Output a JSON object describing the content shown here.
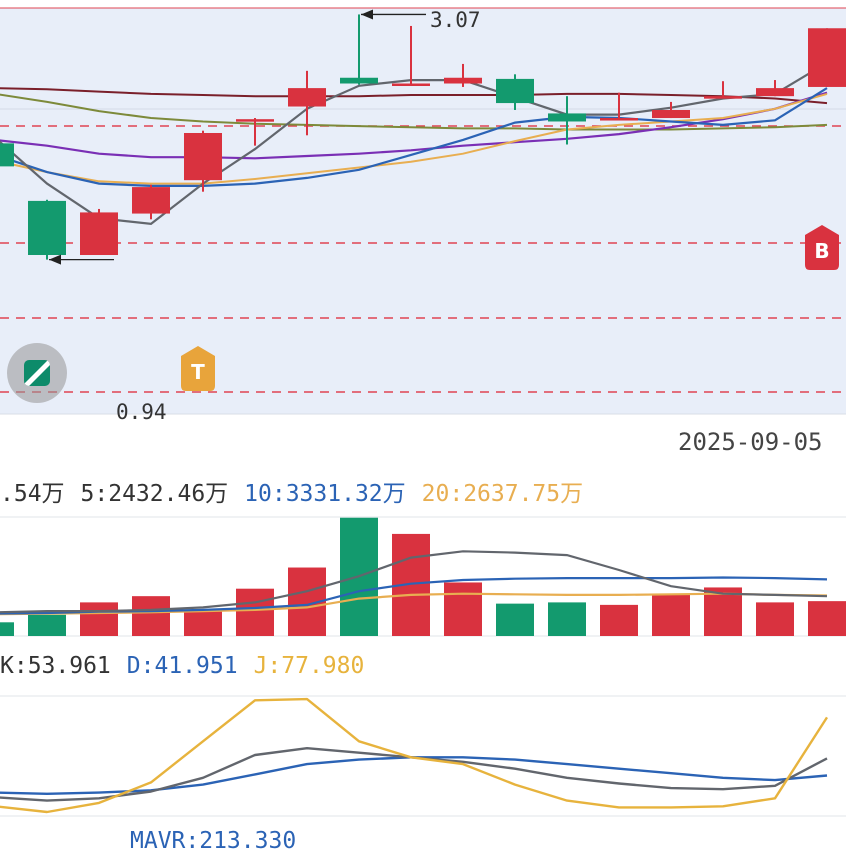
{
  "colors": {
    "up": "#d9323f",
    "down": "#139a6e",
    "ma5": "#62666d",
    "ma10": "#2b63b5",
    "ma20": "#e8ae51",
    "ma_purple": "#7a2fb5",
    "ma_olive": "#7d8a3a",
    "ma_maroon": "#7a1f2a",
    "kdj_j": "#e7b33d",
    "panel_bg": "#e8eef9",
    "dash": "#e04452",
    "text": "#333333",
    "marker_t": "#e8a43b",
    "marker_b": "#d9323f"
  },
  "price_chart": {
    "high_label": "3.07",
    "low_label": "0.94",
    "date_label": "2025-09-05",
    "candles": [
      {
        "open": 1.95,
        "close": 1.75,
        "high": 1.97,
        "low": 1.72,
        "dir": "down"
      },
      {
        "open": 1.45,
        "close": 0.98,
        "high": 1.46,
        "low": 0.94,
        "dir": "down"
      },
      {
        "open": 0.98,
        "close": 1.35,
        "high": 1.38,
        "low": 0.98,
        "dir": "up"
      },
      {
        "open": 1.34,
        "close": 1.57,
        "high": 1.59,
        "low": 1.29,
        "dir": "up"
      },
      {
        "open": 1.63,
        "close": 2.04,
        "high": 2.06,
        "low": 1.53,
        "dir": "up"
      },
      {
        "open": 2.15,
        "close": 2.16,
        "high": 2.17,
        "low": 1.93,
        "dir": "up"
      },
      {
        "open": 2.27,
        "close": 2.43,
        "high": 2.58,
        "low": 2.02,
        "dir": "up"
      },
      {
        "open": 2.47,
        "close": 2.52,
        "high": 3.07,
        "low": 2.46,
        "dir": "down"
      },
      {
        "open": 2.47,
        "close": 2.47,
        "high": 2.97,
        "low": 2.47,
        "dir": "up"
      },
      {
        "open": 2.47,
        "close": 2.52,
        "high": 2.64,
        "low": 2.44,
        "dir": "up"
      },
      {
        "open": 2.51,
        "close": 2.3,
        "high": 2.55,
        "low": 2.24,
        "dir": "down"
      },
      {
        "open": 2.21,
        "close": 2.14,
        "high": 2.36,
        "low": 1.94,
        "dir": "down"
      },
      {
        "open": 2.15,
        "close": 2.17,
        "high": 2.39,
        "low": 2.15,
        "dir": "up"
      },
      {
        "open": 2.17,
        "close": 2.24,
        "high": 2.31,
        "low": 2.17,
        "dir": "up"
      },
      {
        "open": 2.35,
        "close": 2.36,
        "high": 2.49,
        "low": 2.34,
        "dir": "up"
      },
      {
        "open": 2.36,
        "close": 2.43,
        "high": 2.5,
        "low": 2.36,
        "dir": "up"
      },
      {
        "open": 2.44,
        "close": 2.95,
        "high": 2.95,
        "low": 2.44,
        "dir": "up"
      }
    ],
    "ma_lines": {
      "ma5": [
        2.0,
        1.6,
        1.3,
        1.25,
        1.6,
        1.9,
        2.25,
        2.45,
        2.5,
        2.5,
        2.35,
        2.2,
        2.2,
        2.26,
        2.34,
        2.38,
        2.65
      ],
      "ma10": [
        1.85,
        1.7,
        1.6,
        1.58,
        1.58,
        1.6,
        1.65,
        1.72,
        1.85,
        1.98,
        2.13,
        2.18,
        2.17,
        2.14,
        2.11,
        2.15,
        2.43
      ],
      "ma20": [
        1.8,
        1.7,
        1.62,
        1.6,
        1.6,
        1.64,
        1.69,
        1.74,
        1.79,
        1.86,
        1.97,
        2.07,
        2.11,
        2.14,
        2.17,
        2.25,
        2.38
      ],
      "ma_purple": [
        1.98,
        1.93,
        1.86,
        1.83,
        1.83,
        1.82,
        1.84,
        1.86,
        1.89,
        1.93,
        1.96,
        1.99,
        2.03,
        2.09,
        2.16,
        2.25,
        2.39
      ],
      "ma_olive": [
        2.38,
        2.31,
        2.23,
        2.17,
        2.14,
        2.12,
        2.11,
        2.1,
        2.09,
        2.08,
        2.08,
        2.07,
        2.07,
        2.07,
        2.08,
        2.09,
        2.11
      ],
      "ma_maroon": [
        2.43,
        2.42,
        2.4,
        2.38,
        2.37,
        2.36,
        2.36,
        2.36,
        2.37,
        2.37,
        2.37,
        2.38,
        2.38,
        2.37,
        2.36,
        2.34,
        2.3
      ]
    },
    "markers": {
      "t_label": "T",
      "b_label": "B"
    }
  },
  "volume_legend": [
    {
      "text": ".54万",
      "color_key": "text"
    },
    {
      "text": "5:2432.46万",
      "color_key": "text"
    },
    {
      "text": "10:3331.32万",
      "color_key": "ma10"
    },
    {
      "text": "20:2637.75万",
      "color_key": "ma20"
    }
  ],
  "volume_chart": {
    "bars": [
      {
        "v": 1100,
        "dir": "down"
      },
      {
        "v": 1700,
        "dir": "down"
      },
      {
        "v": 2700,
        "dir": "up"
      },
      {
        "v": 3200,
        "dir": "up"
      },
      {
        "v": 2100,
        "dir": "up"
      },
      {
        "v": 3800,
        "dir": "up"
      },
      {
        "v": 5500,
        "dir": "up"
      },
      {
        "v": 9500,
        "dir": "down"
      },
      {
        "v": 8200,
        "dir": "up"
      },
      {
        "v": 4300,
        "dir": "up"
      },
      {
        "v": 2600,
        "dir": "down"
      },
      {
        "v": 2700,
        "dir": "down"
      },
      {
        "v": 2500,
        "dir": "up"
      },
      {
        "v": 3400,
        "dir": "up"
      },
      {
        "v": 3900,
        "dir": "up"
      },
      {
        "v": 2700,
        "dir": "up"
      },
      {
        "v": 2800,
        "dir": "up"
      }
    ],
    "ma5": [
      1900,
      2000,
      2000,
      2100,
      2300,
      2700,
      3600,
      4800,
      6300,
      6800,
      6700,
      6500,
      5300,
      4000,
      3400,
      3300,
      3200
    ],
    "ma10": [
      1800,
      1850,
      1950,
      2000,
      2100,
      2250,
      2500,
      3600,
      4200,
      4500,
      4600,
      4650,
      4650,
      4650,
      4700,
      4650,
      4550
    ],
    "ma20": [
      1750,
      1800,
      1850,
      1900,
      2000,
      2100,
      2300,
      3000,
      3300,
      3400,
      3350,
      3300,
      3300,
      3350,
      3400,
      3300,
      3250
    ]
  },
  "kdj_legend": [
    {
      "text": "K:53.961",
      "color_key": "text"
    },
    {
      "text": "D:41.951",
      "color_key": "ma10"
    },
    {
      "text": "J:77.980",
      "color_key": "kdj_j"
    }
  ],
  "kdj_chart": {
    "k": [
      13,
      10,
      12,
      18,
      30,
      50,
      56,
      52,
      48,
      44,
      38,
      30,
      25,
      21,
      20,
      23,
      47
    ],
    "d": [
      17,
      16,
      17,
      19,
      24,
      33,
      42,
      46,
      48,
      48,
      46,
      42,
      38,
      34,
      30,
      28,
      32
    ],
    "j": [
      5,
      0,
      8,
      26,
      62,
      98,
      99,
      62,
      48,
      42,
      24,
      10,
      4,
      4,
      5,
      12,
      83
    ],
    "range": [
      0,
      100
    ]
  },
  "bottom_legend": {
    "text": "MAVR:213.330"
  }
}
